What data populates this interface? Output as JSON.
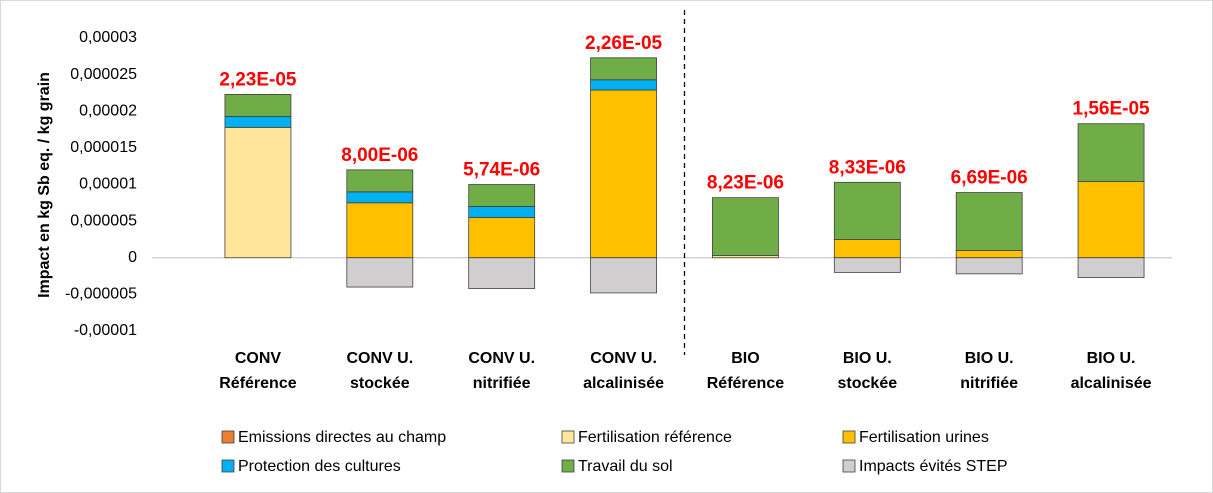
{
  "chart_data": {
    "type": "stacked_bar",
    "y_axis_label": "Impact en kg Sb eq. / kg grain",
    "categories": [
      "CONV Référence",
      "CONV U. stockée",
      "CONV U. nitrifiée",
      "CONV U. alcalinisée",
      "BIO Référence",
      "BIO U. stockée",
      "BIO U. nitrifiée",
      "BIO U. alcalinisée"
    ],
    "series": [
      {
        "name": "Emissions directes au champ",
        "color": "#ED7D31",
        "values": [
          0,
          0,
          0,
          0,
          0,
          0,
          0,
          0
        ]
      },
      {
        "name": "Fertilisation référence",
        "color": "#FFE699",
        "values": [
          1.78e-05,
          0,
          0,
          0,
          3e-07,
          0,
          0,
          0
        ]
      },
      {
        "name": "Fertilisation urines",
        "color": "#FFC000",
        "values": [
          0,
          7.5e-06,
          5.5e-06,
          2.29e-05,
          0,
          2.5e-06,
          1e-06,
          1.04e-05
        ]
      },
      {
        "name": "Protection des cultures",
        "color": "#00B0F0",
        "values": [
          1.5e-06,
          1.5e-06,
          1.5e-06,
          1.4e-06,
          0,
          0,
          0,
          0
        ]
      },
      {
        "name": "Travail du sol",
        "color": "#70AD47",
        "values": [
          3e-06,
          3e-06,
          3e-06,
          3e-06,
          7.9e-06,
          7.8e-06,
          7.9e-06,
          7.9e-06
        ]
      },
      {
        "name": "Impacts évités STEP",
        "color": "#D0CECE",
        "values": [
          0,
          -4e-06,
          -4.2e-06,
          -4.8e-06,
          0,
          -2e-06,
          -2.2e-06,
          -2.7e-06
        ]
      }
    ],
    "net_totals": {
      "values": [
        2.23e-05,
        8e-06,
        5.74e-06,
        2.26e-05,
        8.23e-06,
        8.33e-06,
        6.69e-06,
        1.56e-05
      ],
      "value_labels": [
        "2,23E-05",
        "8,00E-06",
        "5,74E-06",
        "2,26E-05",
        "8,23E-06",
        "8,33E-06",
        "6,69E-06",
        "1,56E-05"
      ],
      "color": "#FF0000"
    },
    "ylim": [
      -1e-05,
      3e-05
    ],
    "yticks": [
      {
        "value": -1e-05,
        "label": "-0,00001"
      },
      {
        "value": -5e-06,
        "label": "-0,000005"
      },
      0,
      {
        "value": 5e-06,
        "label": "0,000005"
      },
      {
        "value": 1e-05,
        "label": "0,00001"
      },
      {
        "value": 1.5e-05,
        "label": "0,000015"
      },
      {
        "value": 2e-05,
        "label": "0,00002"
      },
      {
        "value": 2.5e-05,
        "label": "0,000025"
      },
      {
        "value": 3e-05,
        "label": "0,00003"
      }
    ],
    "grid": false,
    "legend": "bottom"
  }
}
